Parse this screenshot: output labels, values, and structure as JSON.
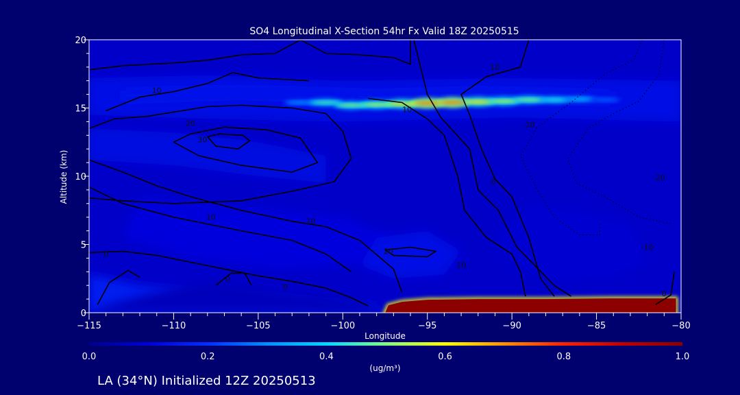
{
  "chart_data": {
    "type": "heatmap",
    "title": "SO4 Longitudinal X-Section 54hr  Fx Valid 18Z 20250515",
    "xlabel": "Longitude",
    "ylabel": "Altitude (km)",
    "xlim": [
      -115,
      -80
    ],
    "ylim": [
      0,
      20
    ],
    "x_ticks": [
      -115,
      -110,
      -105,
      -100,
      -95,
      -90,
      -85,
      -80
    ],
    "x_tick_labels": [
      "−115",
      "−110",
      "−105",
      "−100",
      "−95",
      "−90",
      "−85",
      "−80"
    ],
    "y_ticks": [
      0,
      5,
      10,
      15,
      20
    ],
    "y_tick_labels": [
      "0",
      "5",
      "10",
      "15",
      "20"
    ],
    "colorbar": {
      "label": "(ug/m³)",
      "ticks": [
        0.0,
        0.2,
        0.4,
        0.6,
        0.8,
        1.0
      ],
      "tick_labels": [
        "0.0",
        "0.2",
        "0.4",
        "0.6",
        "0.8",
        "1.0"
      ],
      "colors": [
        "#00008c",
        "#0000d8",
        "#0030ff",
        "#0090ff",
        "#00d8ff",
        "#80ff80",
        "#ffff00",
        "#ff9000",
        "#ff2000",
        "#c00000",
        "#8c0000"
      ]
    },
    "background_layers": [
      {
        "value": 0.08,
        "points": [
          [
            -115,
            0
          ],
          [
            -115,
            20
          ],
          [
            -80,
            20
          ],
          [
            -80,
            0
          ]
        ]
      },
      {
        "value": 0.13,
        "points": [
          [
            -115,
            14.5
          ],
          [
            -108,
            14.2
          ],
          [
            -100,
            14.0
          ],
          [
            -90,
            14.3
          ],
          [
            -80,
            14.0
          ],
          [
            -80,
            17
          ],
          [
            -90,
            17.2
          ],
          [
            -100,
            17.0
          ],
          [
            -108,
            17.4
          ],
          [
            -115,
            17.2
          ]
        ]
      },
      {
        "value": 0.15,
        "points": [
          [
            -113,
            15.5
          ],
          [
            -106,
            15.8
          ],
          [
            -98,
            15.4
          ],
          [
            -92,
            15.6
          ],
          [
            -84,
            15.3
          ],
          [
            -84,
            16.2
          ],
          [
            -92,
            16.4
          ],
          [
            -98,
            16.2
          ],
          [
            -106,
            16.5
          ],
          [
            -113,
            16.3
          ]
        ]
      },
      {
        "value": 0.12,
        "points": [
          [
            -115,
            13.5
          ],
          [
            -110,
            13.2
          ],
          [
            -105,
            12.5
          ],
          [
            -101,
            11.5
          ],
          [
            -101,
            9.5
          ],
          [
            -105,
            10.0
          ],
          [
            -110,
            10.8
          ],
          [
            -115,
            11.2
          ]
        ]
      },
      {
        "value": 0.11,
        "points": [
          [
            -112,
            8.5
          ],
          [
            -106,
            7.8
          ],
          [
            -100,
            7.0
          ],
          [
            -97,
            5.5
          ],
          [
            -99,
            3.5
          ],
          [
            -104,
            3.2
          ],
          [
            -109,
            4.0
          ],
          [
            -113,
            5.5
          ]
        ]
      },
      {
        "value": 0.13,
        "points": [
          [
            -98,
            5.5
          ],
          [
            -95,
            6.0
          ],
          [
            -93,
            4.5
          ],
          [
            -94,
            2.8
          ],
          [
            -97,
            2.5
          ],
          [
            -99,
            3.5
          ]
        ]
      },
      {
        "value": 0.16,
        "points": [
          [
            -115,
            2.8
          ],
          [
            -112,
            2.0
          ],
          [
            -108,
            1.5
          ],
          [
            -104,
            1.2
          ],
          [
            -101,
            0.8
          ],
          [
            -98,
            0.6
          ],
          [
            -98,
            0.0
          ],
          [
            -115,
            0.0
          ]
        ]
      },
      {
        "value": 0.06,
        "points": [
          [
            -115,
            0
          ],
          [
            -114,
            0.5
          ],
          [
            -112,
            1.2
          ],
          [
            -109,
            2.1
          ],
          [
            -107,
            2.2
          ],
          [
            -104,
            1.6
          ],
          [
            -101,
            1.2
          ],
          [
            -99,
            0.9
          ],
          [
            -98,
            0.5
          ],
          [
            -98,
            0
          ]
        ]
      },
      {
        "value": 0.09,
        "points": [
          [
            -89,
            8.0
          ],
          [
            -86,
            7.5
          ],
          [
            -83,
            6.5
          ],
          [
            -82,
            4.0
          ],
          [
            -84,
            2.5
          ],
          [
            -88,
            2.4
          ],
          [
            -90,
            3.5
          ],
          [
            -91,
            5.5
          ]
        ]
      }
    ],
    "jet_band": [
      [
        -102.5,
        15.4,
        0.3
      ],
      [
        -101,
        15.4,
        0.45
      ],
      [
        -99.5,
        15.2,
        0.5
      ],
      [
        -98,
        15.25,
        0.55
      ],
      [
        -96.5,
        15.3,
        0.62
      ],
      [
        -95,
        15.35,
        0.72
      ],
      [
        -93.5,
        15.4,
        0.72
      ],
      [
        -92,
        15.45,
        0.62
      ],
      [
        -90.5,
        15.5,
        0.55
      ],
      [
        -89,
        15.6,
        0.5
      ],
      [
        -87.5,
        15.6,
        0.42
      ],
      [
        -86,
        15.65,
        0.35
      ],
      [
        -84.5,
        15.6,
        0.25
      ]
    ],
    "surface_layer": {
      "value": 1.0,
      "points": [
        [
          -97.5,
          0.0
        ],
        [
          -97.3,
          0.55
        ],
        [
          -96.5,
          0.8
        ],
        [
          -95,
          0.95
        ],
        [
          -92,
          1.0
        ],
        [
          -88,
          1.0
        ],
        [
          -84,
          1.05
        ],
        [
          -80.3,
          1.05
        ],
        [
          -80.3,
          0.0
        ]
      ],
      "edge_value": 0.6
    },
    "contours": [
      {
        "level": "10",
        "style": "solid",
        "points": [
          [
            -115,
            17.8
          ],
          [
            -113,
            18.1
          ],
          [
            -110,
            18.3
          ],
          [
            -108,
            18.5
          ],
          [
            -106,
            18.9
          ],
          [
            -104,
            19.0
          ],
          [
            -102.5,
            20.0
          ],
          [
            -101,
            19.0
          ],
          [
            -99,
            18.9
          ],
          [
            -97,
            18.7
          ],
          [
            -96,
            18.2
          ],
          [
            -96,
            20.0
          ]
        ]
      },
      {
        "level": "10",
        "style": "solid",
        "points": [
          [
            -114,
            14.8
          ],
          [
            -112,
            15.8
          ],
          [
            -110,
            16.2
          ],
          [
            -108,
            16.8
          ],
          [
            -106.5,
            17.6
          ],
          [
            -105,
            17.2
          ],
          [
            -102,
            17.0
          ]
        ]
      },
      {
        "level": "20",
        "style": "solid",
        "points": [
          [
            -115,
            13.5
          ],
          [
            -113.5,
            14.2
          ],
          [
            -111.5,
            14.4
          ],
          [
            -108,
            15.1
          ],
          [
            -106,
            15.2
          ],
          [
            -103,
            15.0
          ],
          [
            -101,
            14.6
          ],
          [
            -100,
            13.3
          ],
          [
            -99.5,
            11.3
          ],
          [
            -100.5,
            9.6
          ],
          [
            -103,
            8.9
          ],
          [
            -106,
            8.2
          ],
          [
            -110,
            8.0
          ],
          [
            -113,
            8.2
          ],
          [
            -115,
            8.4
          ]
        ]
      },
      {
        "level": "30",
        "style": "solid",
        "points": [
          [
            -110,
            12.5
          ],
          [
            -109,
            13.1
          ],
          [
            -107,
            13.6
          ],
          [
            -104.5,
            13.4
          ],
          [
            -102.5,
            12.8
          ],
          [
            -101.5,
            11.0
          ],
          [
            -103,
            10.3
          ],
          [
            -106,
            10.8
          ],
          [
            -108.5,
            11.5
          ],
          [
            -110,
            12.5
          ]
        ]
      },
      {
        "level": "",
        "style": "solid",
        "points": [
          [
            -108,
            12.9
          ],
          [
            -107.3,
            13.1
          ],
          [
            -105.9,
            13.0
          ],
          [
            -105.5,
            12.6
          ],
          [
            -106.2,
            12.0
          ],
          [
            -107.5,
            12.2
          ],
          [
            -108,
            12.9
          ]
        ]
      },
      {
        "level": "10",
        "style": "solid",
        "points": [
          [
            -115,
            11.2
          ],
          [
            -113,
            10.3
          ],
          [
            -111,
            9.3
          ],
          [
            -109,
            8.5
          ],
          [
            -106,
            7.5
          ],
          [
            -103,
            6.7
          ],
          [
            -101,
            6.3
          ],
          [
            -99,
            5.3
          ],
          [
            -97,
            3.2
          ],
          [
            -96.5,
            1.5
          ]
        ]
      },
      {
        "level": "20",
        "style": "solid",
        "points": [
          [
            -115,
            9.2
          ],
          [
            -113,
            8.0
          ],
          [
            -110,
            7.0
          ],
          [
            -106,
            6.0
          ],
          [
            -103,
            5.3
          ],
          [
            -101,
            4.3
          ],
          [
            -99.5,
            3.0
          ]
        ]
      },
      {
        "level": "20",
        "style": "solid",
        "points": [
          [
            -97.5,
            4.6
          ],
          [
            -96,
            4.8
          ],
          [
            -94.5,
            4.5
          ],
          [
            -95,
            4.1
          ],
          [
            -97,
            4.2
          ],
          [
            -97.5,
            4.6
          ]
        ]
      },
      {
        "level": "0",
        "style": "solid",
        "points": [
          [
            -115,
            4.4
          ],
          [
            -113,
            4.5
          ],
          [
            -111,
            4.2
          ],
          [
            -109,
            3.7
          ],
          [
            -107,
            3.2
          ],
          [
            -105,
            2.7
          ],
          [
            -103,
            2.3
          ],
          [
            -101,
            1.8
          ],
          [
            -99.5,
            1.1
          ],
          [
            -98.5,
            0.5
          ]
        ]
      },
      {
        "level": "0",
        "style": "solid",
        "points": [
          [
            -107.5,
            2.0
          ],
          [
            -106.6,
            2.9
          ],
          [
            -105.8,
            2.9
          ],
          [
            -105.4,
            2.0
          ]
        ]
      },
      {
        "level": "",
        "style": "solid",
        "points": [
          [
            -114.5,
            0.6
          ],
          [
            -113.8,
            2.2
          ],
          [
            -112.7,
            3.1
          ],
          [
            -112,
            2.6
          ]
        ]
      },
      {
        "level": "10",
        "style": "solid",
        "points": [
          [
            -98.5,
            15.7
          ],
          [
            -96.5,
            15.4
          ],
          [
            -95,
            14.2
          ],
          [
            -94,
            13.0
          ],
          [
            -93.2,
            10.0
          ],
          [
            -92.8,
            7.5
          ],
          [
            -91.5,
            5.5
          ],
          [
            -90,
            4.3
          ],
          [
            -89.5,
            3.0
          ],
          [
            -89.2,
            1.2
          ]
        ]
      },
      {
        "level": "10",
        "style": "solid",
        "points": [
          [
            -95.8,
            20.0
          ],
          [
            -95,
            16.0
          ],
          [
            -94.2,
            14.3
          ],
          [
            -92.5,
            12.0
          ],
          [
            -92,
            9.0
          ],
          [
            -90.8,
            7.5
          ],
          [
            -89.7,
            4.8
          ],
          [
            -87.5,
            2.0
          ],
          [
            -86.5,
            1.2
          ]
        ]
      },
      {
        "level": "0",
        "style": "solid",
        "points": [
          [
            -89,
            20.0
          ],
          [
            -89.5,
            18.0
          ],
          [
            -91.5,
            17.3
          ],
          [
            -93,
            16.0
          ],
          [
            -92.5,
            14.5
          ],
          [
            -91.8,
            12.0
          ],
          [
            -91,
            9.8
          ],
          [
            -90,
            8.5
          ],
          [
            -89,
            5.5
          ],
          [
            -88.3,
            2.5
          ],
          [
            -87.5,
            1.2
          ]
        ]
      },
      {
        "level": "0",
        "style": "solid",
        "points": [
          [
            -80.4,
            3.0
          ],
          [
            -80.6,
            1.3
          ],
          [
            -81.5,
            0.6
          ]
        ]
      },
      {
        "level": "-10",
        "style": "dotted",
        "points": [
          [
            -82.3,
            20.0
          ],
          [
            -82.8,
            18.5
          ],
          [
            -84.5,
            17.5
          ],
          [
            -86.5,
            15.4
          ],
          [
            -88.5,
            13.6
          ],
          [
            -89.5,
            11.5
          ],
          [
            -88.5,
            9.0
          ],
          [
            -87.5,
            7.0
          ],
          [
            -86,
            5.7
          ],
          [
            -84.8,
            5.7
          ],
          [
            -84.8,
            6.5
          ]
        ]
      },
      {
        "level": "-20",
        "style": "dotted",
        "points": [
          [
            -81,
            20.0
          ],
          [
            -81.3,
            17.5
          ],
          [
            -82.5,
            15.5
          ],
          [
            -84,
            14.6
          ],
          [
            -85.5,
            13.5
          ],
          [
            -86.7,
            11.3
          ],
          [
            -86.2,
            9.5
          ],
          [
            -84.5,
            8.5
          ],
          [
            -82.5,
            7.0
          ],
          [
            -80.5,
            6.5
          ]
        ]
      }
    ],
    "contour_labels": [
      {
        "text": "10",
        "x": -111.0,
        "y": 16.3
      },
      {
        "text": "20",
        "x": -109.0,
        "y": 13.9
      },
      {
        "text": "30",
        "x": -108.3,
        "y": 12.7
      },
      {
        "text": "10",
        "x": -96.2,
        "y": 14.9
      },
      {
        "text": "10",
        "x": -91.0,
        "y": 18.0
      },
      {
        "text": "-10",
        "x": -89.0,
        "y": 13.8
      },
      {
        "text": "-20",
        "x": -81.3,
        "y": 9.9
      },
      {
        "text": "0",
        "x": -91.1,
        "y": 9.6
      },
      {
        "text": "10",
        "x": -107.8,
        "y": 7.0
      },
      {
        "text": "20",
        "x": -101.9,
        "y": 6.7
      },
      {
        "text": "20",
        "x": -97.3,
        "y": 4.5
      },
      {
        "text": "10",
        "x": -93.0,
        "y": 3.5
      },
      {
        "text": "0",
        "x": -114.0,
        "y": 4.3
      },
      {
        "text": "-10",
        "x": -82.0,
        "y": 4.8
      },
      {
        "text": "0",
        "x": -106.8,
        "y": 2.5
      },
      {
        "text": "0",
        "x": -103.4,
        "y": 1.9
      },
      {
        "text": "0",
        "x": -81.0,
        "y": 1.4
      }
    ]
  },
  "footer_text": "LA (34°N) Initialized 12Z 20250513"
}
